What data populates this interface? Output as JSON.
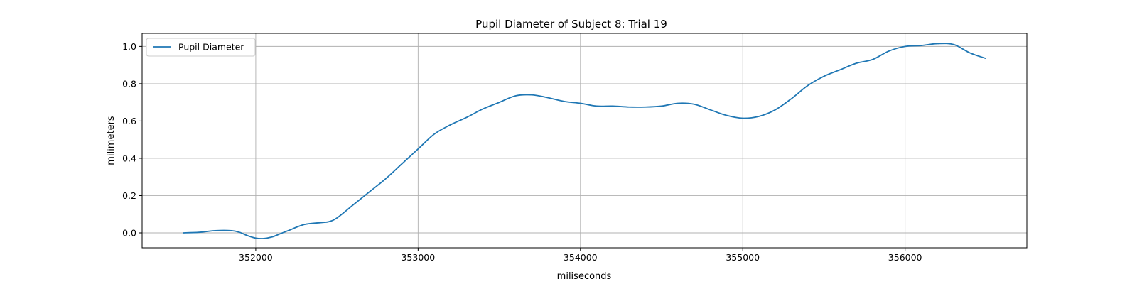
{
  "chart_data": {
    "type": "line",
    "title": "Pupil Diameter of Subject 8: Trial 19",
    "xlabel": "miliseconds",
    "ylabel": "milimeters",
    "xlim": [
      351300,
      356750
    ],
    "ylim": [
      -0.08,
      1.07
    ],
    "xticks": [
      352000,
      353000,
      354000,
      355000,
      356000
    ],
    "yticks": [
      0.0,
      0.2,
      0.4,
      0.6,
      0.8,
      1.0
    ],
    "xtick_labels": [
      "352000",
      "353000",
      "354000",
      "355000",
      "356000"
    ],
    "ytick_labels": [
      "0.0",
      "0.2",
      "0.4",
      "0.6",
      "0.8",
      "1.0"
    ],
    "grid": true,
    "legend_position": "top-left",
    "series": [
      {
        "name": "Pupil Diameter",
        "color": "#1f77b4",
        "x": [
          351550,
          351650,
          351750,
          351850,
          351900,
          351950,
          352000,
          352050,
          352100,
          352150,
          352200,
          352300,
          352400,
          352450,
          352500,
          352600,
          352700,
          352800,
          352900,
          353000,
          353100,
          353200,
          353300,
          353400,
          353500,
          353600,
          353700,
          353800,
          353900,
          354000,
          354100,
          354200,
          354300,
          354400,
          354500,
          354600,
          354700,
          354800,
          354900,
          355000,
          355100,
          355200,
          355300,
          355400,
          355500,
          355600,
          355700,
          355800,
          355900,
          356000,
          356100,
          356200,
          356300,
          356400,
          356500
        ],
        "values": [
          0.0,
          0.003,
          0.012,
          0.012,
          0.003,
          -0.015,
          -0.028,
          -0.03,
          -0.022,
          -0.005,
          0.012,
          0.045,
          0.055,
          0.06,
          0.08,
          0.15,
          0.22,
          0.29,
          0.37,
          0.45,
          0.53,
          0.58,
          0.62,
          0.665,
          0.7,
          0.735,
          0.74,
          0.725,
          0.705,
          0.695,
          0.68,
          0.68,
          0.675,
          0.675,
          0.68,
          0.695,
          0.69,
          0.66,
          0.63,
          0.615,
          0.625,
          0.66,
          0.72,
          0.79,
          0.84,
          0.875,
          0.91,
          0.93,
          0.975,
          1.0,
          1.005,
          1.015,
          1.01,
          0.965,
          0.935
        ]
      }
    ]
  }
}
